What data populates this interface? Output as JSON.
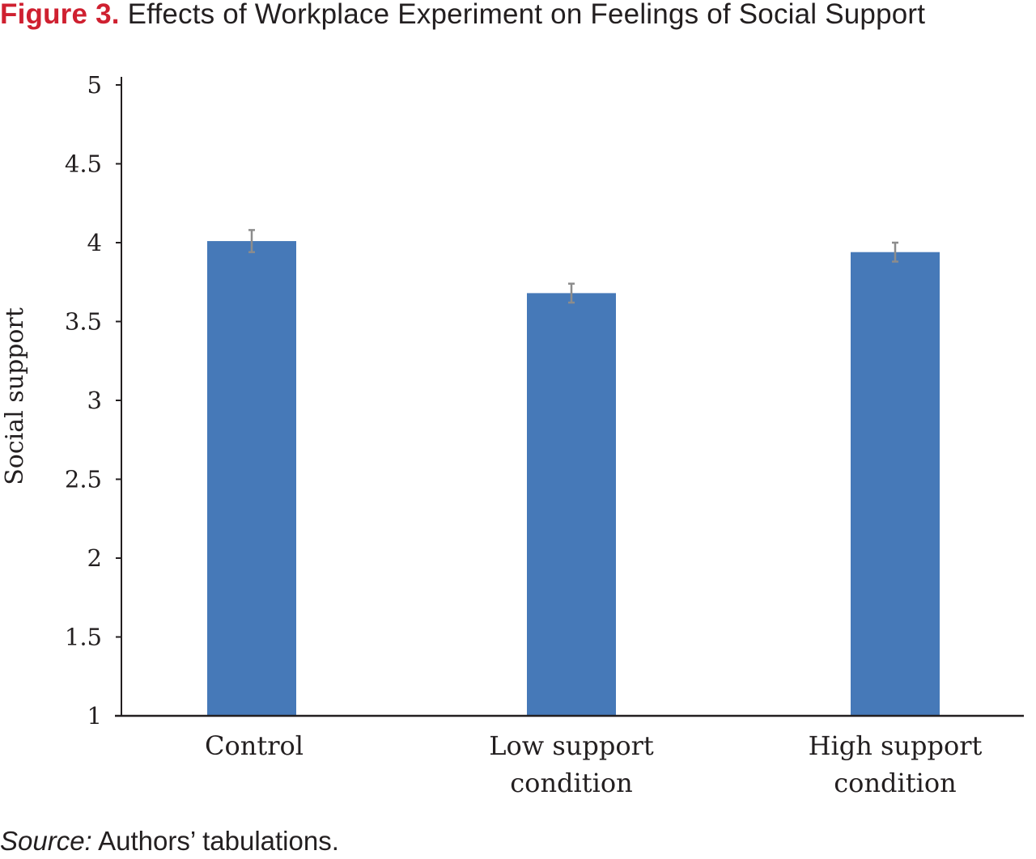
{
  "figure": {
    "label": "Figure 3.",
    "title": "Effects of Workplace Experiment on Feelings of Social Support"
  },
  "source": {
    "label": "Source:",
    "text": "Authors’ tabulations."
  },
  "chart_data": {
    "type": "bar",
    "title": "",
    "xlabel": "",
    "ylabel": "Social support",
    "categories": [
      [
        "Control"
      ],
      [
        "Low support",
        "condition"
      ],
      [
        "High support",
        "condition"
      ]
    ],
    "values": [
      4.01,
      3.68,
      3.94
    ],
    "error": [
      0.07,
      0.06,
      0.06
    ],
    "ylim": [
      1,
      5
    ],
    "yticks": [
      "1",
      "1.5",
      "2",
      "2.5",
      "3",
      "3.5",
      "4",
      "4.5",
      "5"
    ],
    "grid": false,
    "legend": "none",
    "colors": {
      "bar": "#4679b8",
      "error_bar": "#8c8c8c",
      "axis": "#231f20"
    }
  }
}
